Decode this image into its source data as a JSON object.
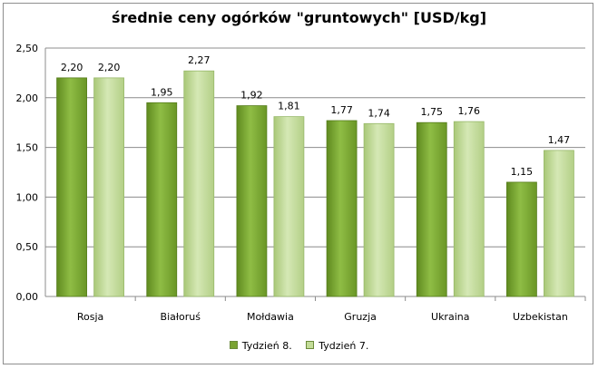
{
  "chart_data": {
    "type": "bar",
    "title": "średnie ceny ogórków \"gruntowych\" [USD/kg]",
    "categories": [
      "Rosja",
      "Białoruś",
      "Mołdawia",
      "Gruzja",
      "Ukraina",
      "Uzbekistan"
    ],
    "series": [
      {
        "name": "Tydzień 8.",
        "values": [
          2.2,
          1.95,
          1.92,
          1.77,
          1.75,
          1.15
        ],
        "color": "#7aa332"
      },
      {
        "name": "Tydzień 7.",
        "values": [
          2.2,
          2.27,
          1.81,
          1.74,
          1.76,
          1.47
        ],
        "color": "#c3dc98"
      }
    ],
    "data_labels": [
      [
        "2,20",
        "1,95",
        "1,92",
        "1,77",
        "1,75",
        "1,15"
      ],
      [
        "2,20",
        "2,27",
        "1,81",
        "1,74",
        "1,76",
        "1,47"
      ]
    ],
    "ylim": [
      0,
      2.5
    ],
    "yticks": [
      0,
      0.5,
      1.0,
      1.5,
      2.0,
      2.5
    ],
    "ytick_labels": [
      "0,00",
      "0,50",
      "1,00",
      "1,50",
      "2,00",
      "2,50"
    ],
    "grid": true,
    "legend": "bottom"
  }
}
